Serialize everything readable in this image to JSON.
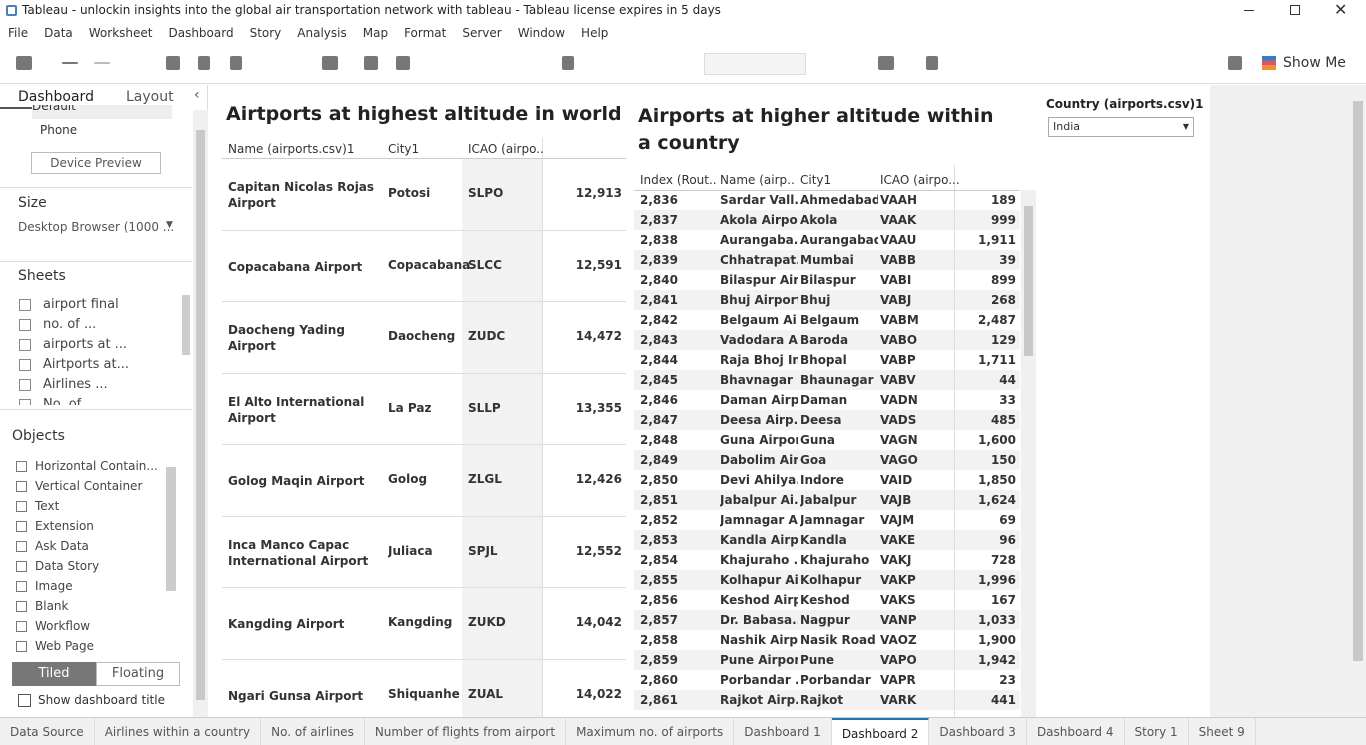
{
  "window": {
    "title": "Tableau - unlockin insights into the global air transportation network with tableau - Tableau license expires in 5 days"
  },
  "menu": [
    "File",
    "Data",
    "Worksheet",
    "Dashboard",
    "Story",
    "Analysis",
    "Map",
    "Format",
    "Server",
    "Window",
    "Help"
  ],
  "toolbar": {
    "show_me": "Show Me"
  },
  "left_panel": {
    "tabs": [
      "Dashboard",
      "Layout"
    ],
    "device": {
      "items": [
        "Default",
        "Phone"
      ],
      "button": "Device Preview"
    },
    "size": {
      "heading": "Size",
      "value": "Desktop Browser (1000 ..."
    },
    "sheets": {
      "heading": "Sheets",
      "items": [
        "airport final",
        "no. of ...",
        "airports at ...",
        "Airtports at...",
        "Airlines ...",
        "No. of"
      ]
    },
    "objects": {
      "heading": "Objects",
      "items": [
        "Horizontal Contain...",
        "Vertical Container",
        "Text",
        "Extension",
        "Ask Data",
        "Data Story",
        "Image",
        "Blank",
        "Workflow",
        "Web Page"
      ]
    },
    "layout_toggle": [
      "Tiled",
      "Floating"
    ],
    "show_title": "Show dashboard title"
  },
  "dashboard": {
    "table1": {
      "title": "Airtports at highest altitude in world",
      "columns": [
        "Name (airports.csv)1",
        "City1",
        "ICAO (airpo.."
      ],
      "rows": [
        [
          "Capitan Nicolas Rojas Airport",
          "Potosi",
          "SLPO",
          "12,913"
        ],
        [
          "Copacabana Airport",
          "Copacabana",
          "SLCC",
          "12,591"
        ],
        [
          "Daocheng Yading Airport",
          "Daocheng",
          "ZUDC",
          "14,472"
        ],
        [
          "El Alto International Airport",
          "La Paz",
          "SLLP",
          "13,355"
        ],
        [
          "Golog Maqin Airport",
          "Golog",
          "ZLGL",
          "12,426"
        ],
        [
          "Inca Manco Capac International Airport",
          "Juliaca",
          "SPJL",
          "12,552"
        ],
        [
          "Kangding Airport",
          "Kangding",
          "ZUKD",
          "14,042"
        ],
        [
          "Ngari Gunsa Airport",
          "Shiquanhe",
          "ZUAL",
          "14,022"
        ]
      ]
    },
    "table2": {
      "title": "Airports at higher altitude within a country",
      "columns": [
        "Index (Rout..",
        "Name (airp..",
        "City1",
        "ICAO (airpo..."
      ],
      "rows": [
        [
          "2,836",
          "Sardar Vall..",
          "Ahmedabad",
          "VAAH",
          "189"
        ],
        [
          "2,837",
          "Akola Airpo..",
          "Akola",
          "VAAK",
          "999"
        ],
        [
          "2,838",
          "Aurangaba..",
          "Aurangabad",
          "VAAU",
          "1,911"
        ],
        [
          "2,839",
          "Chhatrapat..",
          "Mumbai",
          "VABB",
          "39"
        ],
        [
          "2,840",
          "Bilaspur Air..",
          "Bilaspur",
          "VABI",
          "899"
        ],
        [
          "2,841",
          "Bhuj Airport",
          "Bhuj",
          "VABJ",
          "268"
        ],
        [
          "2,842",
          "Belgaum Ai..",
          "Belgaum",
          "VABM",
          "2,487"
        ],
        [
          "2,843",
          "Vadodara A..",
          "Baroda",
          "VABO",
          "129"
        ],
        [
          "2,844",
          "Raja Bhoj In..",
          "Bhopal",
          "VABP",
          "1,711"
        ],
        [
          "2,845",
          "Bhavnagar ..",
          "Bhaunagar",
          "VABV",
          "44"
        ],
        [
          "2,846",
          "Daman Airp..",
          "Daman",
          "VADN",
          "33"
        ],
        [
          "2,847",
          "Deesa Airp..",
          "Deesa",
          "VADS",
          "485"
        ],
        [
          "2,848",
          "Guna Airport",
          "Guna",
          "VAGN",
          "1,600"
        ],
        [
          "2,849",
          "Dabolim Air..",
          "Goa",
          "VAGO",
          "150"
        ],
        [
          "2,850",
          "Devi Ahilya..",
          "Indore",
          "VAID",
          "1,850"
        ],
        [
          "2,851",
          "Jabalpur Ai..",
          "Jabalpur",
          "VAJB",
          "1,624"
        ],
        [
          "2,852",
          "Jamnagar A..",
          "Jamnagar",
          "VAJM",
          "69"
        ],
        [
          "2,853",
          "Kandla Airp..",
          "Kandla",
          "VAKE",
          "96"
        ],
        [
          "2,854",
          "Khajuraho ..",
          "Khajuraho",
          "VAKJ",
          "728"
        ],
        [
          "2,855",
          "Kolhapur Ai..",
          "Kolhapur",
          "VAKP",
          "1,996"
        ],
        [
          "2,856",
          "Keshod Airp..",
          "Keshod",
          "VAKS",
          "167"
        ],
        [
          "2,857",
          "Dr. Babasa..",
          "Nagpur",
          "VANP",
          "1,033"
        ],
        [
          "2,858",
          "Nashik Airp..",
          "Nasik Road",
          "VAOZ",
          "1,900"
        ],
        [
          "2,859",
          "Pune Airport",
          "Pune",
          "VAPO",
          "1,942"
        ],
        [
          "2,860",
          "Porbandar ..",
          "Porbandar",
          "VAPR",
          "23"
        ],
        [
          "2,861",
          "Rajkot Airp..",
          "Rajkot",
          "VARK",
          "441"
        ]
      ]
    },
    "filter": {
      "label": "Country (airports.csv)1",
      "value": "India"
    }
  },
  "tabs": [
    "Data Source",
    "Airlines within a country",
    "No. of airlines",
    "Number of flights from airport",
    "Maximum no. of airports",
    "Dashboard 1",
    "Dashboard 2",
    "Dashboard 3",
    "Dashboard 4",
    "Story 1",
    "Sheet 9"
  ]
}
